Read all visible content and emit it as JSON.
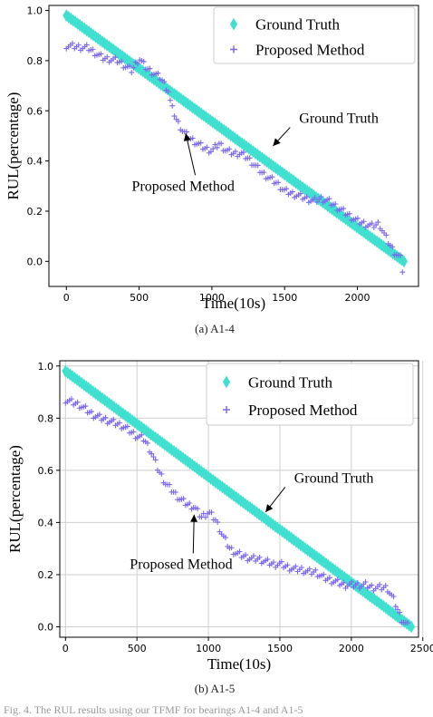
{
  "chart_data": [
    {
      "type": "scatter",
      "title": "",
      "xlabel": "Time(10s)",
      "ylabel": "RUL(percentage)",
      "xlim": [
        -120,
        2420
      ],
      "ylim": [
        -0.1,
        1.02
      ],
      "xticks": [
        0,
        500,
        1000,
        1500,
        2000
      ],
      "yticks": [
        0.0,
        0.2,
        0.4,
        0.6,
        0.8,
        1.0
      ],
      "grid": false,
      "legend": "top-right",
      "caption": "(a)  A1-4",
      "series": [
        {
          "name": "Ground Truth",
          "marker": "diamond",
          "color": "#40e0d0",
          "x": [
            0,
            2320
          ],
          "y": [
            0.98,
            0.0
          ]
        },
        {
          "name": "Proposed Method",
          "marker": "plus",
          "color": "#7b68ee",
          "x": [
            0,
            150,
            250,
            350,
            450,
            500,
            550,
            600,
            650,
            700,
            720,
            760,
            800,
            850,
            900,
            950,
            1000,
            1050,
            1100,
            1150,
            1200,
            1250,
            1300,
            1350,
            1400,
            1450,
            1500,
            1550,
            1600,
            1650,
            1700,
            1750,
            1800,
            1850,
            1900,
            1950,
            2000,
            2050,
            2100,
            2150,
            2200,
            2250,
            2300,
            2320
          ],
          "y": [
            0.86,
            0.85,
            0.81,
            0.8,
            0.76,
            0.81,
            0.77,
            0.75,
            0.73,
            0.68,
            0.62,
            0.56,
            0.52,
            0.49,
            0.47,
            0.45,
            0.44,
            0.47,
            0.44,
            0.43,
            0.43,
            0.41,
            0.38,
            0.35,
            0.33,
            0.31,
            0.28,
            0.27,
            0.26,
            0.25,
            0.24,
            0.25,
            0.24,
            0.22,
            0.2,
            0.18,
            0.16,
            0.15,
            0.14,
            0.15,
            0.09,
            0.04,
            0.01,
            -0.08
          ]
        }
      ],
      "annotations": [
        {
          "text": "Ground Truth",
          "x": 1600,
          "y": 0.57,
          "arrow_to": [
            1420,
            0.46
          ]
        },
        {
          "text": "Proposed Method",
          "x": 450,
          "y": 0.3,
          "arrow_to": [
            820,
            0.51
          ]
        }
      ]
    },
    {
      "type": "scatter",
      "title": "",
      "xlabel": "Time(10s)",
      "ylabel": "RUL(percentage)",
      "xlim": [
        -40,
        2470
      ],
      "ylim": [
        -0.04,
        1.02
      ],
      "xticks": [
        0,
        500,
        1000,
        1500,
        2000,
        2500
      ],
      "yticks": [
        0.0,
        0.2,
        0.4,
        0.6,
        0.8,
        1.0
      ],
      "grid": true,
      "legend": "top-right",
      "caption": "(b)  A1-5",
      "series": [
        {
          "name": "Ground Truth",
          "marker": "diamond",
          "color": "#40e0d0",
          "x": [
            0,
            2420
          ],
          "y": [
            0.98,
            0.0
          ]
        },
        {
          "name": "Proposed Method",
          "marker": "plus",
          "color": "#7b68ee",
          "x": [
            0,
            100,
            200,
            300,
            400,
            450,
            500,
            550,
            600,
            650,
            700,
            750,
            800,
            850,
            900,
            950,
            1000,
            1050,
            1100,
            1150,
            1200,
            1250,
            1300,
            1350,
            1400,
            1450,
            1500,
            1550,
            1600,
            1650,
            1700,
            1750,
            1800,
            1850,
            1900,
            1950,
            2000,
            2050,
            2100,
            2150,
            2200,
            2250,
            2300,
            2350,
            2400
          ],
          "y": [
            0.87,
            0.85,
            0.81,
            0.79,
            0.77,
            0.75,
            0.73,
            0.72,
            0.67,
            0.6,
            0.55,
            0.52,
            0.49,
            0.47,
            0.46,
            0.42,
            0.44,
            0.41,
            0.35,
            0.3,
            0.28,
            0.27,
            0.26,
            0.26,
            0.25,
            0.24,
            0.24,
            0.23,
            0.22,
            0.22,
            0.21,
            0.21,
            0.19,
            0.18,
            0.17,
            0.16,
            0.16,
            0.16,
            0.16,
            0.15,
            0.15,
            0.15,
            0.1,
            0.03,
            0.0
          ]
        }
      ],
      "annotations": [
        {
          "text": "Ground Truth",
          "x": 1600,
          "y": 0.57,
          "arrow_to": [
            1400,
            0.44
          ]
        },
        {
          "text": "Proposed Method",
          "x": 450,
          "y": 0.24,
          "arrow_to": [
            900,
            0.43
          ]
        }
      ]
    }
  ],
  "captions": {
    "a": "(a)  A1-4",
    "b": "(b)  A1-5"
  },
  "footer_fragment": "Fig. 4.  The RUL results using our TFMF for bearings A1-4 and A1-5"
}
